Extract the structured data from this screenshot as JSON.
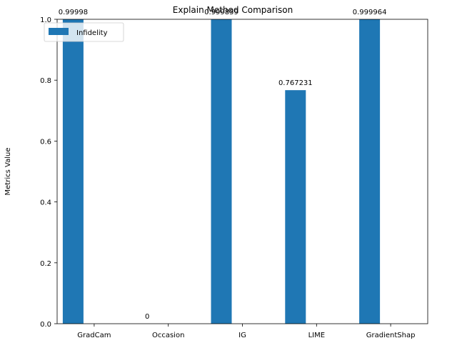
{
  "chart_data": {
    "type": "bar",
    "title": "Explain Method Comparison",
    "xlabel": "",
    "ylabel": "Metrics Value",
    "categories": [
      "GradCam",
      "Occasion",
      "IG",
      "LIME",
      "GradientShap"
    ],
    "series": [
      {
        "name": "Infidelity",
        "values": [
          0.99998,
          0,
          0.999859,
          0.767231,
          0.999964
        ],
        "labels": [
          "0.99998",
          "0",
          "0.999859",
          "0.767231",
          "0.999964"
        ],
        "color": "#1f77b4"
      }
    ],
    "ylim": [
      0,
      1.0
    ],
    "yticks": [
      "0.0",
      "0.2",
      "0.4",
      "0.6",
      "0.8",
      "1.0"
    ],
    "grid": false,
    "legend_position": "top-left"
  }
}
